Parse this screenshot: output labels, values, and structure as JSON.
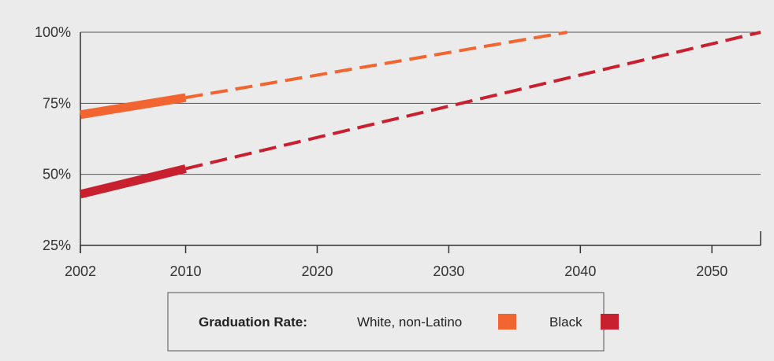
{
  "chart_data": {
    "type": "line",
    "title": "",
    "xlabel": "",
    "ylabel": "",
    "xlim": [
      2002,
      2053.7
    ],
    "ylim": [
      25,
      100
    ],
    "x_ticks": [
      2002,
      2010,
      2020,
      2030,
      2040,
      2050
    ],
    "y_ticks": [
      25,
      50,
      75,
      100
    ],
    "y_tick_labels": [
      "25%",
      "50%",
      "75%",
      "100%"
    ],
    "grid": "horizontal",
    "legend": {
      "position": "bottom",
      "title": "Graduation Rate:"
    },
    "series": [
      {
        "name": "White, non-Latino",
        "color": "#f26531",
        "actual": {
          "x": [
            2002,
            2010
          ],
          "y": [
            71,
            77
          ]
        },
        "projected": {
          "x": [
            2010,
            2039
          ],
          "y": [
            77,
            100
          ]
        }
      },
      {
        "name": "Black",
        "color": "#c8202f",
        "actual": {
          "x": [
            2002,
            2010
          ],
          "y": [
            43,
            52
          ]
        },
        "projected": {
          "x": [
            2010,
            2053.7
          ],
          "y": [
            52,
            100
          ]
        }
      }
    ]
  }
}
